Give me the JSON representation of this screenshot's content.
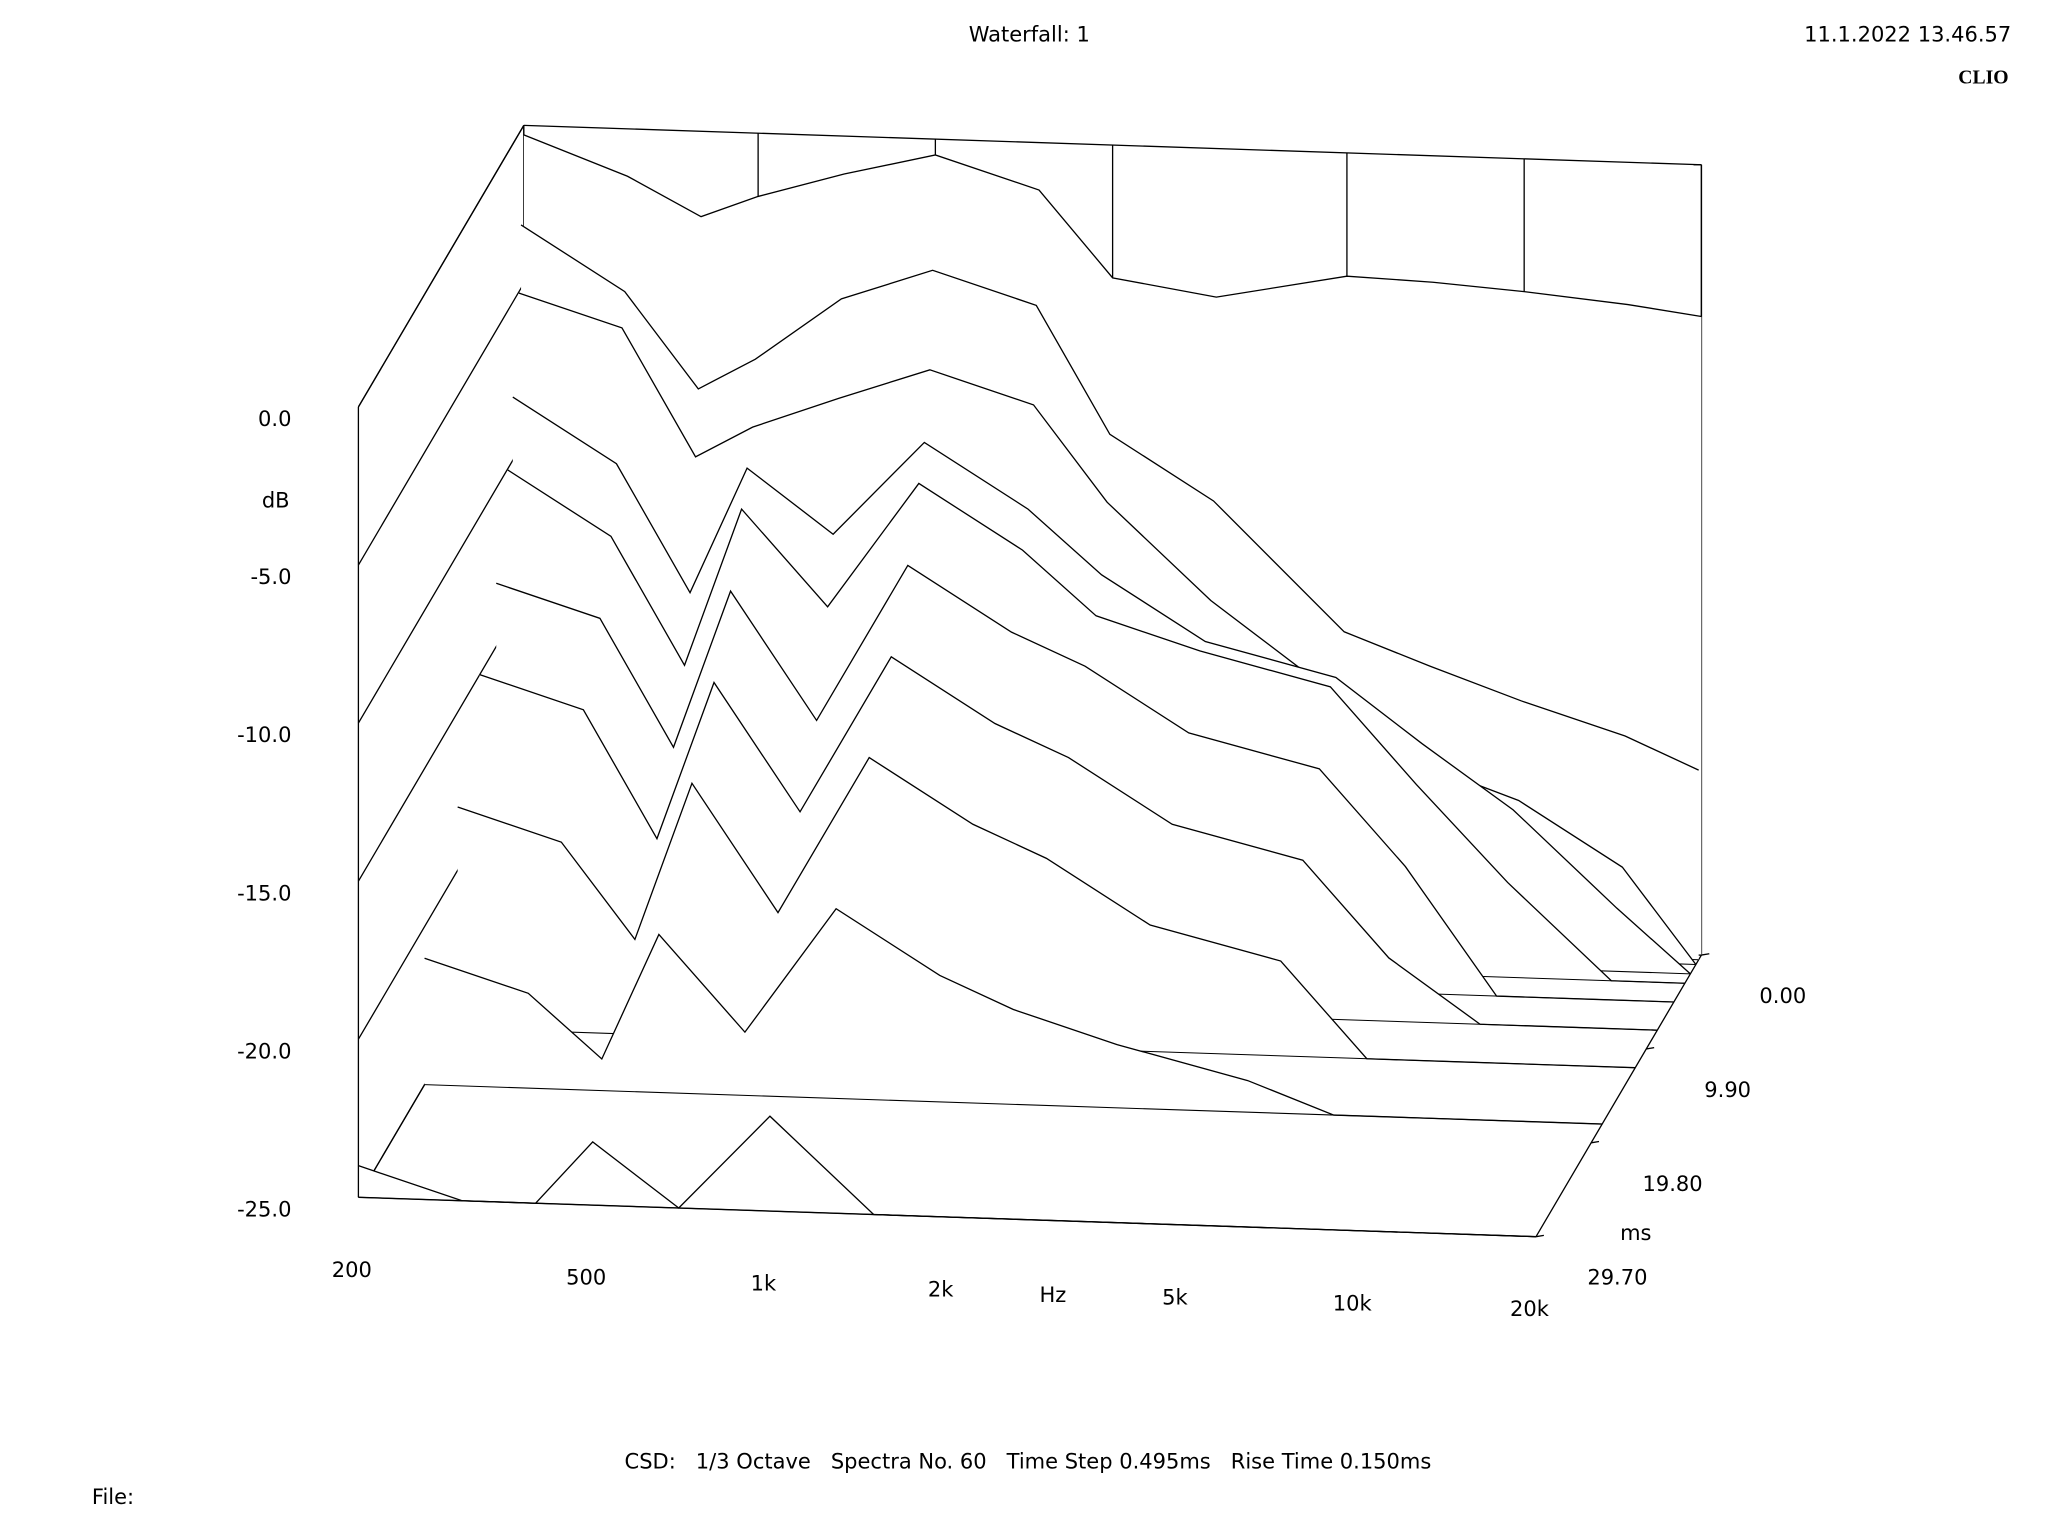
{
  "chart_data": {
    "type": "waterfall",
    "title": "Waterfall: 1",
    "timestamp": "11.1.2022 13.46.57",
    "brand": "CLIO",
    "ylabel": "dB",
    "xlabel": "Hz",
    "zlabel": "ms",
    "footer": "CSD:   1/3 Octave   Spectra No. 60   Time Step 0.495ms   Rise Time 0.150ms",
    "file_label": "File:",
    "xscale": "log",
    "xlim": [
      200,
      20000
    ],
    "ylim": [
      -25,
      0
    ],
    "zlim": [
      0,
      29.7
    ],
    "xticks": [
      200,
      500,
      {
        "value": 1000,
        "label": "1k"
      },
      {
        "value": 2000,
        "label": "2k"
      },
      {
        "value": 5000,
        "label": "5k"
      },
      {
        "value": 10000,
        "label": "10k"
      },
      {
        "value": 20000,
        "label": "20k"
      }
    ],
    "yticks": [
      {
        "value": -25,
        "label": "-25.0"
      },
      {
        "value": -20,
        "label": "-20.0"
      },
      {
        "value": -15,
        "label": "-15.0"
      },
      {
        "value": -10,
        "label": "-10.0"
      },
      {
        "value": -5,
        "label": "-5.0"
      },
      {
        "value": 0,
        "label": "0.0"
      }
    ],
    "zticks": [
      {
        "value": 0,
        "label": "0.00"
      },
      {
        "value": 9.9,
        "label": "9.90"
      },
      {
        "value": 19.8,
        "label": "19.80"
      },
      {
        "value": 29.7,
        "label": "29.70"
      }
    ],
    "color": "#000000",
    "x": [
      200,
      300,
      400,
      500,
      700,
      1000,
      1500,
      2000,
      3000,
      5000,
      7000,
      10000,
      15000,
      20000
    ],
    "series": [
      {
        "time": 0,
        "values": [
          -0.3,
          -1.5,
          -2.7,
          -2.0,
          -1.2,
          -0.5,
          -1.5,
          -4.2,
          -4.7,
          -3.9,
          -4.0,
          -4.2,
          -4.5,
          -4.8
        ]
      },
      {
        "time": 0.495,
        "values": [
          -3,
          -5,
          -8,
          -7,
          -5,
          -4,
          -5,
          -9,
          -11,
          -15,
          -16,
          -17,
          -18,
          -19
        ]
      },
      {
        "time": 0.99,
        "values": [
          -5,
          -6,
          -10,
          -9,
          -8,
          -7,
          -8,
          -11,
          -14,
          -17,
          -19,
          -20,
          -22,
          -25
        ]
      },
      {
        "time": 1.98,
        "values": [
          -8,
          -10,
          -14,
          -10,
          -12,
          -9,
          -11,
          -13,
          -15,
          -16,
          -18,
          -20,
          -23,
          -25
        ]
      },
      {
        "time": 2.97,
        "values": [
          -10,
          -12,
          -16,
          -11,
          -14,
          -10,
          -12,
          -14,
          -15,
          -16,
          -19,
          -22,
          -25,
          -25
        ]
      },
      {
        "time": 4.95,
        "values": [
          -13,
          -14,
          -18,
          -13,
          -17,
          -12,
          -14,
          -15,
          -17,
          -18,
          -21,
          -25,
          -25,
          -25
        ]
      },
      {
        "time": 7.92,
        "values": [
          -15,
          -16,
          -20,
          -15,
          -19,
          -14,
          -16,
          -17,
          -19,
          -20,
          -23,
          -25,
          -25,
          -25
        ]
      },
      {
        "time": 11.88,
        "values": [
          -18,
          -19,
          -22,
          -17,
          -21,
          -16,
          -18,
          -19,
          -21,
          -22,
          -25,
          -25,
          -25,
          -25
        ]
      },
      {
        "time": 17.82,
        "values": [
          -21,
          -22,
          -24,
          -20,
          -23,
          -19,
          -21,
          -22,
          -23,
          -24,
          -25,
          -25,
          -25,
          -25
        ]
      },
      {
        "time": 29.7,
        "values": [
          -24,
          -25,
          -25,
          -23,
          -25,
          -22,
          -25,
          -25,
          -25,
          -25,
          -25,
          -25,
          -25,
          -25
        ]
      }
    ]
  }
}
